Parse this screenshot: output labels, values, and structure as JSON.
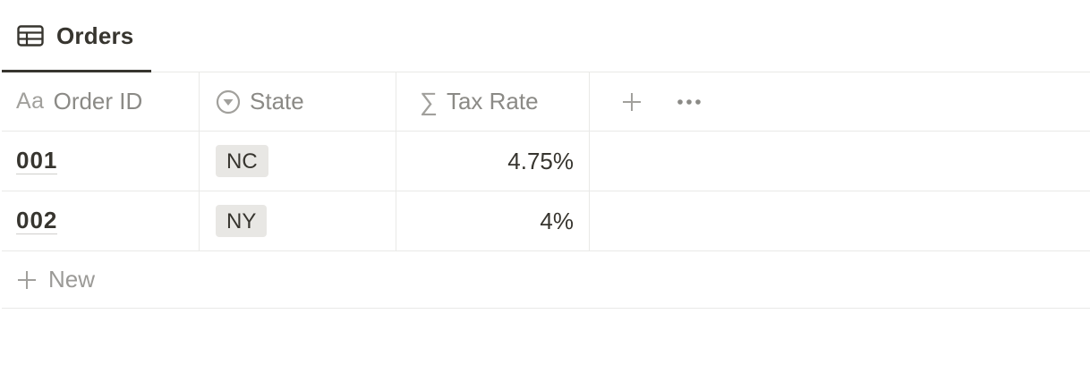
{
  "view": {
    "tab_label": "Orders",
    "tab_icon": "table-icon"
  },
  "table": {
    "columns": [
      {
        "label": "Order ID",
        "icon": "title-aa-icon",
        "icon_text": "Aa"
      },
      {
        "label": "State",
        "icon": "select-icon"
      },
      {
        "label": "Tax Rate",
        "icon": "formula-sigma-icon",
        "icon_text": "∑"
      }
    ],
    "rows": [
      {
        "order_id": "001",
        "state": "NC",
        "tax_rate": "4.75%"
      },
      {
        "order_id": "002",
        "state": "NY",
        "tax_rate": "4%"
      }
    ],
    "new_label": "New"
  },
  "colors": {
    "text": "#37352f",
    "muted": "#8b8a86",
    "border": "#e9e9e7",
    "tag_bg": "#e8e7e4"
  }
}
